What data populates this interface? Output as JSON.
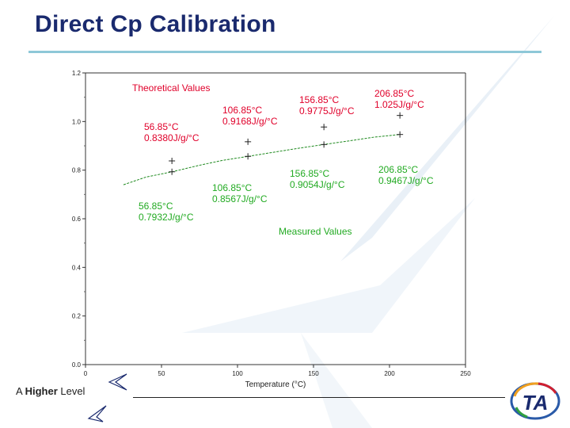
{
  "slide": {
    "title": "Direct Cp Calibration",
    "footer_text_prefix": "A ",
    "footer_text_bold": "Higher",
    "footer_text_suffix": " Level",
    "logo_text": "TA"
  },
  "colors": {
    "title": "#1a2a6e",
    "accent_rule": "#8ec8d8",
    "annotation": "#e0002a",
    "annotation_green": "#22aa22",
    "series_line": "#1f8a1f",
    "axis": "#333333"
  },
  "chart_data": {
    "type": "line",
    "title": "",
    "xlabel": "Temperature (°C)",
    "ylabel": "",
    "xlim": [
      0,
      250
    ],
    "ylim": [
      0.0,
      1.2
    ],
    "x_ticks": [
      "0",
      "50",
      "100",
      "150",
      "200",
      "250"
    ],
    "y_ticks": [
      "0.0",
      "0.2",
      "0.4",
      "0.6",
      "0.8",
      "1.0",
      "1.2"
    ],
    "grid": false,
    "series": [
      {
        "name": "Theoretical Values",
        "marker": "plus",
        "points": [
          {
            "x": 56.85,
            "y": 0.838
          },
          {
            "x": 106.85,
            "y": 0.9168
          },
          {
            "x": 156.85,
            "y": 0.9775
          },
          {
            "x": 206.85,
            "y": 1.025
          }
        ]
      },
      {
        "name": "Measured Values",
        "marker": "plus",
        "line_x": [
          25,
          40,
          56.85,
          75,
          90,
          106.85,
          125,
          140,
          156.85,
          175,
          190,
          206.85
        ],
        "line_y": [
          0.74,
          0.772,
          0.7932,
          0.82,
          0.84,
          0.8567,
          0.875,
          0.89,
          0.9054,
          0.922,
          0.936,
          0.9467
        ],
        "points": [
          {
            "x": 56.85,
            "y": 0.7932
          },
          {
            "x": 106.85,
            "y": 0.8567
          },
          {
            "x": 156.85,
            "y": 0.9054
          },
          {
            "x": 206.85,
            "y": 0.9467
          }
        ]
      }
    ],
    "series_labels": {
      "theoretical": "Theoretical Values",
      "measured": "Measured Values"
    },
    "annotations_theoretical": [
      {
        "temp": "56.85°C",
        "value": "0.8380J/g/°C"
      },
      {
        "temp": "106.85°C",
        "value": "0.9168J/g/°C"
      },
      {
        "temp": "156.85°C",
        "value": "0.9775J/g/°C"
      },
      {
        "temp": "206.85°C",
        "value": "1.025J/g/°C"
      }
    ],
    "annotations_measured": [
      {
        "temp": "56.85°C",
        "value": "0.7932J/g/°C"
      },
      {
        "temp": "106.85°C",
        "value": "0.8567J/g/°C"
      },
      {
        "temp": "156.85°C",
        "value": "0.9054J/g/°C"
      },
      {
        "temp": "206.85°C",
        "value": "0.9467J/g/°C"
      }
    ]
  }
}
